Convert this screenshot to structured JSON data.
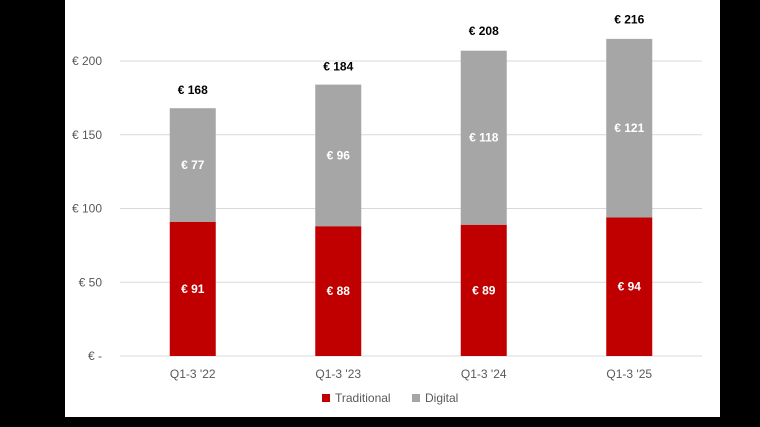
{
  "chart_data": {
    "type": "bar",
    "stacked": true,
    "categories": [
      "Q1-3 '22",
      "Q1-3 '23",
      "Q1-3 '24",
      "Q1-3 '25"
    ],
    "series": [
      {
        "name": "Traditional",
        "values": [
          91,
          88,
          89,
          94
        ],
        "labels": [
          "€ 91",
          "€ 88",
          "€ 89",
          "€ 94"
        ],
        "color": "#c00000"
      },
      {
        "name": "Digital",
        "values": [
          77,
          96,
          118,
          121
        ],
        "labels": [
          "€ 77",
          "€ 96",
          "€ 118",
          "€ 121"
        ],
        "color": "#a6a6a6"
      }
    ],
    "totals": [
      168,
      184,
      208,
      216
    ],
    "total_labels": [
      "€ 168",
      "€ 184",
      "€ 208",
      "€ 216"
    ],
    "ylim": [
      0,
      250
    ],
    "yticks": [
      0,
      50,
      100,
      150,
      200
    ],
    "ytick_labels": [
      "€ -",
      "€ 50",
      "€ 100",
      "€ 150",
      "€ 200"
    ],
    "grid": true,
    "legend_position": "bottom",
    "background": "#ffffff",
    "frame_color": "#000000",
    "grid_color": "#d9d9d9"
  }
}
